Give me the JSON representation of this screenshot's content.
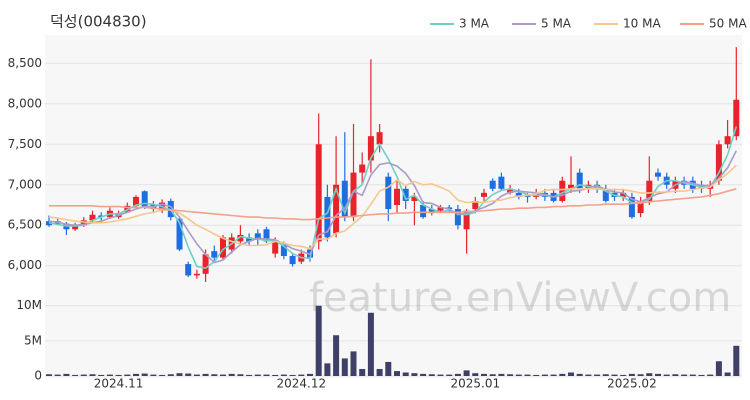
{
  "chart_data": {
    "type": "candlestick",
    "title": "덕성(004830)",
    "watermark": "feature.enViewV.com",
    "categories": [
      null,
      null,
      null,
      null,
      null,
      null,
      null,
      null,
      "2024.11",
      null,
      null,
      null,
      null,
      null,
      null,
      null,
      null,
      null,
      null,
      null,
      null,
      null,
      null,
      null,
      null,
      null,
      null,
      null,
      null,
      "2024.12",
      null,
      null,
      null,
      null,
      null,
      null,
      null,
      null,
      null,
      null,
      null,
      null,
      null,
      null,
      null,
      null,
      null,
      null,
      null,
      "2025.01",
      null,
      null,
      null,
      null,
      null,
      null,
      null,
      null,
      null,
      null,
      null,
      null,
      null,
      null,
      null,
      null,
      null,
      "2025.02",
      null,
      null,
      null,
      null,
      null,
      null,
      null,
      null,
      null,
      null,
      null,
      null
    ],
    "open": [
      6550,
      6550,
      6520,
      6450,
      6500,
      6560,
      6620,
      6600,
      6600,
      6660,
      6740,
      6920,
      6760,
      6680,
      6800,
      6580,
      6020,
      5880,
      5900,
      6180,
      6100,
      6200,
      6300,
      6350,
      6400,
      6450,
      6150,
      6250,
      6120,
      6050,
      6200,
      6300,
      6850,
      6400,
      7050,
      6600,
      7150,
      7300,
      7500,
      7100,
      6750,
      6950,
      6800,
      6750,
      6700,
      6680,
      6720,
      6700,
      6450,
      6700,
      6850,
      7050,
      7100,
      6900,
      6900,
      6880,
      6850,
      6900,
      6900,
      6800,
      6950,
      7150,
      6950,
      7000,
      6950,
      6900,
      6850,
      6850,
      6650,
      6800,
      7150,
      7100,
      6950,
      7050,
      7050,
      7000,
      6950,
      7050,
      7500,
      7600
    ],
    "high": [
      6620,
      6580,
      6540,
      6530,
      6600,
      6680,
      6660,
      6720,
      6680,
      6780,
      6870,
      6930,
      6800,
      6820,
      6830,
      6600,
      6050,
      5950,
      6200,
      6250,
      6380,
      6400,
      6500,
      6400,
      6450,
      6480,
      6350,
      6300,
      6150,
      6200,
      6250,
      7880,
      7000,
      7600,
      7650,
      7750,
      7400,
      8550,
      7750,
      7150,
      7050,
      7000,
      6900,
      6800,
      6750,
      6750,
      6750,
      6750,
      6700,
      6850,
      6950,
      7080,
      7150,
      7000,
      6950,
      6900,
      6950,
      6950,
      6950,
      7100,
      7350,
      7200,
      7050,
      7050,
      7000,
      6950,
      6950,
      6900,
      6850,
      7350,
      7200,
      7150,
      7100,
      7100,
      7100,
      7050,
      7050,
      7550,
      7800,
      8700
    ],
    "low": [
      6480,
      6500,
      6380,
      6430,
      6480,
      6540,
      6560,
      6580,
      6580,
      6650,
      6720,
      6700,
      6650,
      6650,
      6560,
      6180,
      5860,
      5840,
      5800,
      6050,
      6080,
      6150,
      6250,
      6250,
      6250,
      6280,
      6100,
      6080,
      5990,
      6020,
      6050,
      6200,
      6300,
      6350,
      6550,
      6550,
      7000,
      7150,
      7400,
      6550,
      6650,
      6700,
      6500,
      6580,
      6620,
      6650,
      6650,
      6450,
      6150,
      6650,
      6800,
      6920,
      6930,
      6880,
      6820,
      6780,
      6820,
      6800,
      6780,
      6780,
      6900,
      6900,
      6900,
      6900,
      6780,
      6800,
      6800,
      6580,
      6600,
      6750,
      7050,
      6950,
      6900,
      6950,
      6900,
      6900,
      6850,
      7000,
      7450,
      7550
    ],
    "close": [
      6500,
      6520,
      6450,
      6500,
      6560,
      6630,
      6600,
      6680,
      6650,
      6740,
      6850,
      6720,
      6700,
      6780,
      6600,
      6200,
      5880,
      5900,
      6140,
      6100,
      6350,
      6350,
      6380,
      6300,
      6320,
      6300,
      6300,
      6120,
      6020,
      6150,
      6100,
      7500,
      6350,
      7000,
      6600,
      7150,
      7250,
      7600,
      7650,
      6700,
      6950,
      6800,
      6850,
      6600,
      6650,
      6720,
      6700,
      6500,
      6680,
      6800,
      6900,
      6950,
      6950,
      6950,
      6850,
      6850,
      6900,
      6850,
      6800,
      7050,
      7000,
      6950,
      7000,
      6950,
      6800,
      6850,
      6900,
      6600,
      6800,
      7050,
      7100,
      7000,
      7050,
      7000,
      6950,
      6950,
      7000,
      7500,
      7600,
      8050
    ],
    "volume": [
      250000,
      200000,
      300000,
      150000,
      200000,
      250000,
      150000,
      200000,
      150000,
      200000,
      300000,
      350000,
      200000,
      150000,
      250000,
      400000,
      350000,
      200000,
      300000,
      250000,
      200000,
      300000,
      250000,
      150000,
      200000,
      200000,
      150000,
      200000,
      150000,
      200000,
      300000,
      10000000,
      1800000,
      5800000,
      2500000,
      3500000,
      1000000,
      9000000,
      1000000,
      2000000,
      700000,
      500000,
      400000,
      300000,
      250000,
      200000,
      200000,
      300000,
      800000,
      400000,
      300000,
      250000,
      300000,
      250000,
      200000,
      200000,
      150000,
      200000,
      200000,
      300000,
      500000,
      300000,
      200000,
      200000,
      250000,
      200000,
      150000,
      300000,
      250000,
      400000,
      300000,
      200000,
      250000,
      200000,
      200000,
      150000,
      200000,
      2100000,
      500000,
      4300000
    ],
    "up_color": "#e8232b",
    "down_color": "#1f6ee0",
    "volume_color": "#3f4068",
    "series": [
      {
        "name": "3 MA",
        "color": "#6fd0c5",
        "values": [
          6530,
          6510,
          6490,
          6490,
          6500,
          6560,
          6600,
          6640,
          6640,
          6690,
          6750,
          6770,
          6760,
          6730,
          6690,
          6530,
          6230,
          5990,
          5970,
          6050,
          6200,
          6270,
          6360,
          6340,
          6330,
          6310,
          6310,
          6240,
          6150,
          6100,
          6090,
          6580,
          6650,
          6950,
          6650,
          6920,
          7000,
          7330,
          7500,
          7320,
          7100,
          6820,
          6870,
          6750,
          6700,
          6660,
          6690,
          6640,
          6630,
          6660,
          6790,
          6880,
          6930,
          6950,
          6920,
          6880,
          6870,
          6870,
          6850,
          6900,
          6950,
          7000,
          6980,
          6970,
          6920,
          6870,
          6850,
          6780,
          6770,
          6820,
          6980,
          7050,
          7050,
          7020,
          7000,
          6970,
          6970,
          7150,
          7370,
          7720
        ]
      },
      {
        "name": "5 MA",
        "color": "#ab9bc9",
        "values": [
          6550,
          6540,
          6510,
          6500,
          6510,
          6530,
          6550,
          6590,
          6620,
          6660,
          6700,
          6730,
          6730,
          6760,
          6730,
          6600,
          6430,
          6270,
          6140,
          6040,
          6070,
          6170,
          6260,
          6300,
          6340,
          6330,
          6320,
          6270,
          6210,
          6180,
          6140,
          6380,
          6420,
          6620,
          6710,
          6920,
          6870,
          7120,
          7250,
          7270,
          7230,
          7140,
          6990,
          6780,
          6770,
          6720,
          6700,
          6630,
          6650,
          6680,
          6720,
          6770,
          6860,
          6910,
          6920,
          6910,
          6900,
          6880,
          6850,
          6870,
          6920,
          6930,
          6960,
          6990,
          6940,
          6910,
          6900,
          6820,
          6790,
          6840,
          6890,
          6910,
          7000,
          7040,
          7020,
          6990,
          6990,
          7080,
          7210,
          7420
        ]
      },
      {
        "name": "10 MA",
        "color": "#f5c78d",
        "values": [
          6600,
          6590,
          6570,
          6550,
          6540,
          6530,
          6530,
          6540,
          6560,
          6580,
          6610,
          6640,
          6660,
          6690,
          6690,
          6650,
          6580,
          6500,
          6450,
          6390,
          6340,
          6300,
          6270,
          6250,
          6250,
          6260,
          6300,
          6280,
          6250,
          6240,
          6210,
          6330,
          6330,
          6400,
          6430,
          6520,
          6610,
          6760,
          6920,
          6970,
          7060,
          6990,
          7040,
          7000,
          7010,
          6970,
          6920,
          6810,
          6780,
          6790,
          6780,
          6800,
          6810,
          6840,
          6860,
          6870,
          6890,
          6930,
          6940,
          6940,
          6950,
          6950,
          6950,
          6950,
          6940,
          6940,
          6940,
          6920,
          6900,
          6900,
          6910,
          6910,
          6920,
          6920,
          6940,
          6960,
          6970,
          7060,
          7140,
          7240
        ]
      },
      {
        "name": "50 MA",
        "color": "#f4a18c",
        "values": [
          6740,
          6740,
          6740,
          6740,
          6740,
          6740,
          6730,
          6730,
          6730,
          6720,
          6720,
          6720,
          6710,
          6700,
          6690,
          6680,
          6670,
          6660,
          6650,
          6640,
          6630,
          6620,
          6610,
          6600,
          6600,
          6590,
          6590,
          6580,
          6580,
          6570,
          6570,
          6580,
          6590,
          6600,
          6600,
          6610,
          6620,
          6630,
          6640,
          6640,
          6650,
          6650,
          6660,
          6660,
          6660,
          6660,
          6660,
          6660,
          6670,
          6670,
          6680,
          6690,
          6700,
          6700,
          6710,
          6710,
          6720,
          6720,
          6730,
          6730,
          6740,
          6740,
          6750,
          6750,
          6760,
          6760,
          6760,
          6770,
          6780,
          6790,
          6800,
          6810,
          6820,
          6830,
          6840,
          6850,
          6870,
          6890,
          6920,
          6950
        ]
      }
    ],
    "ylim": [
      5700,
      8850
    ],
    "yticks": [
      {
        "value": 6000,
        "label": "6,000"
      },
      {
        "value": 6500,
        "label": "6,500"
      },
      {
        "value": 7000,
        "label": "7,000"
      },
      {
        "value": 7500,
        "label": "7,500"
      },
      {
        "value": 8000,
        "label": "8,000"
      },
      {
        "value": 8500,
        "label": "8,500"
      }
    ],
    "vlim": [
      0,
      11100000
    ],
    "vticks": [
      0,
      {
        "value": 5000000,
        "label": "5M"
      },
      {
        "value": 10000000,
        "label": "10M"
      }
    ],
    "grid": true
  }
}
